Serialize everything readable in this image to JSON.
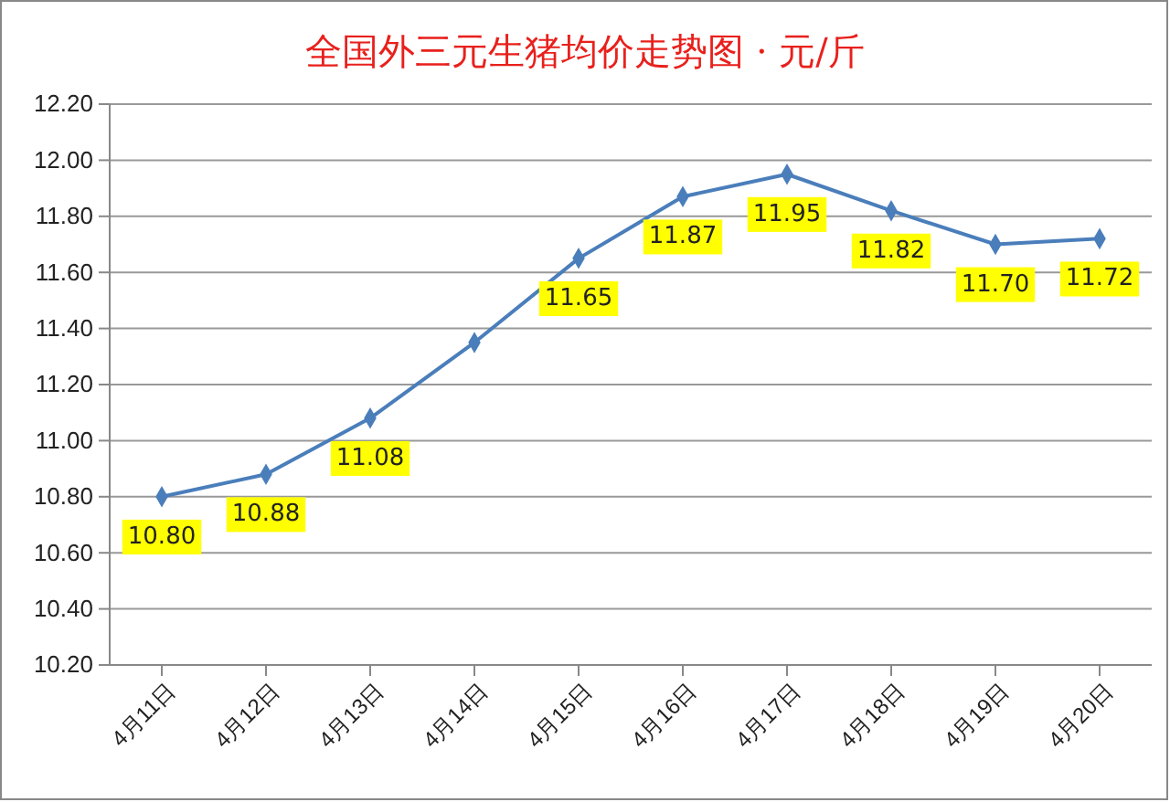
{
  "chart_data": {
    "type": "line",
    "title": "全国外三元生猪均价走势图 · 元/斤",
    "categories": [
      "4月11日",
      "4月12日",
      "4月13日",
      "4月14日",
      "4月15日",
      "4月16日",
      "4月17日",
      "4月18日",
      "4月19日",
      "4月20日"
    ],
    "series": [
      {
        "color": "#4a7ebb",
        "values": [
          10.8,
          10.88,
          11.08,
          11.35,
          11.65,
          11.87,
          11.95,
          11.82,
          11.7,
          11.72
        ],
        "value_labels": [
          "10.80",
          "10.88",
          "11.08",
          null,
          "11.65",
          "11.87",
          "11.95",
          "11.82",
          "11.70",
          "11.72"
        ]
      }
    ],
    "ylim": [
      10.2,
      12.2
    ],
    "yticks": [
      "10.20",
      "10.40",
      "10.60",
      "10.80",
      "11.00",
      "11.20",
      "11.40",
      "11.60",
      "11.80",
      "12.00",
      "12.20"
    ],
    "grid": "y",
    "marker": "diamond",
    "line_style": "solid"
  }
}
